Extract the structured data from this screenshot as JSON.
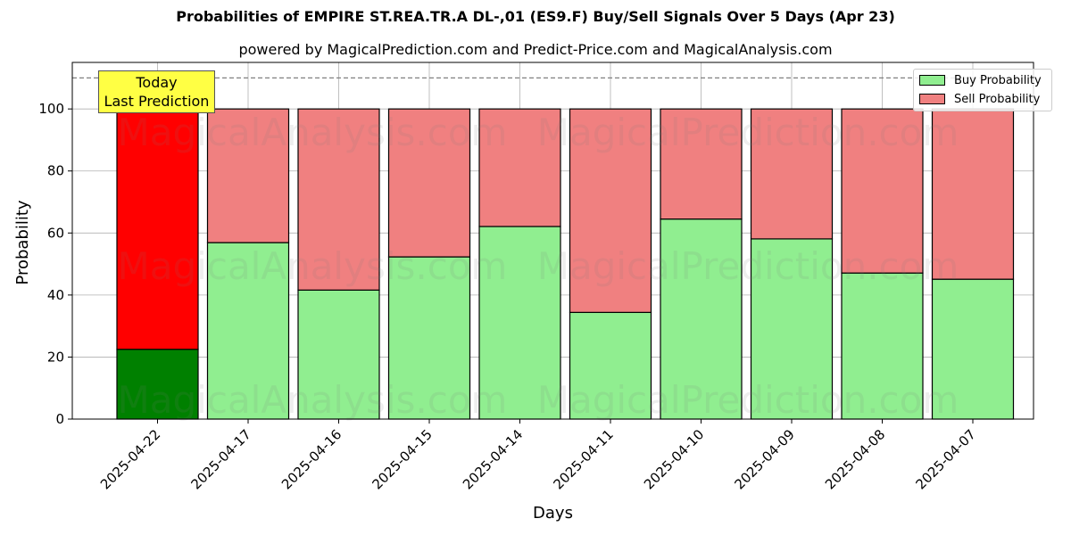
{
  "title": "Probabilities of EMPIRE ST.REA.TR.A DL-,01 (ES9.F) Buy/Sell Signals Over 5 Days (Apr 23)",
  "subtitle": "powered by MagicalPrediction.com and Predict-Price.com and MagicalAnalysis.com",
  "annotation": {
    "line1": "Today",
    "line2": "Last Prediction"
  },
  "legend": {
    "buy": "Buy Probability",
    "sell": "Sell Probability"
  },
  "watermarks": [
    "MagicalAnalysis.com",
    "MagicalPrediction.com"
  ],
  "colors": {
    "buy": "#90ee90",
    "sell": "#f08080",
    "buy_today": "#008000",
    "sell_today": "#ff0000",
    "annotation_bg": "#ffff44",
    "threshold_line": "#808080"
  },
  "chart_data": {
    "type": "bar",
    "stacked": true,
    "title": "Probabilities of EMPIRE ST.REA.TR.A DL-,01 (ES9.F) Buy/Sell Signals Over 5 Days (Apr 23)",
    "subtitle": "powered by MagicalPrediction.com and Predict-Price.com and MagicalAnalysis.com",
    "xlabel": "Days",
    "ylabel": "Probability",
    "ylim": [
      0,
      115
    ],
    "yticks": [
      0,
      20,
      40,
      60,
      80,
      100
    ],
    "grid": true,
    "legend_position": "upper right",
    "reference_line": {
      "y": 110,
      "style": "dashed"
    },
    "categories": [
      "2025-04-22",
      "2025-04-17",
      "2025-04-16",
      "2025-04-15",
      "2025-04-14",
      "2025-04-11",
      "2025-04-10",
      "2025-04-09",
      "2025-04-08",
      "2025-04-07"
    ],
    "series": [
      {
        "name": "Buy Probability",
        "values": [
          22.5,
          56.9,
          41.6,
          52.3,
          62.1,
          34.4,
          64.5,
          58.1,
          47.1,
          45.1
        ]
      },
      {
        "name": "Sell Probability",
        "values": [
          77.5,
          43.1,
          58.4,
          47.7,
          37.9,
          65.6,
          35.5,
          41.9,
          52.9,
          54.9
        ]
      }
    ]
  }
}
